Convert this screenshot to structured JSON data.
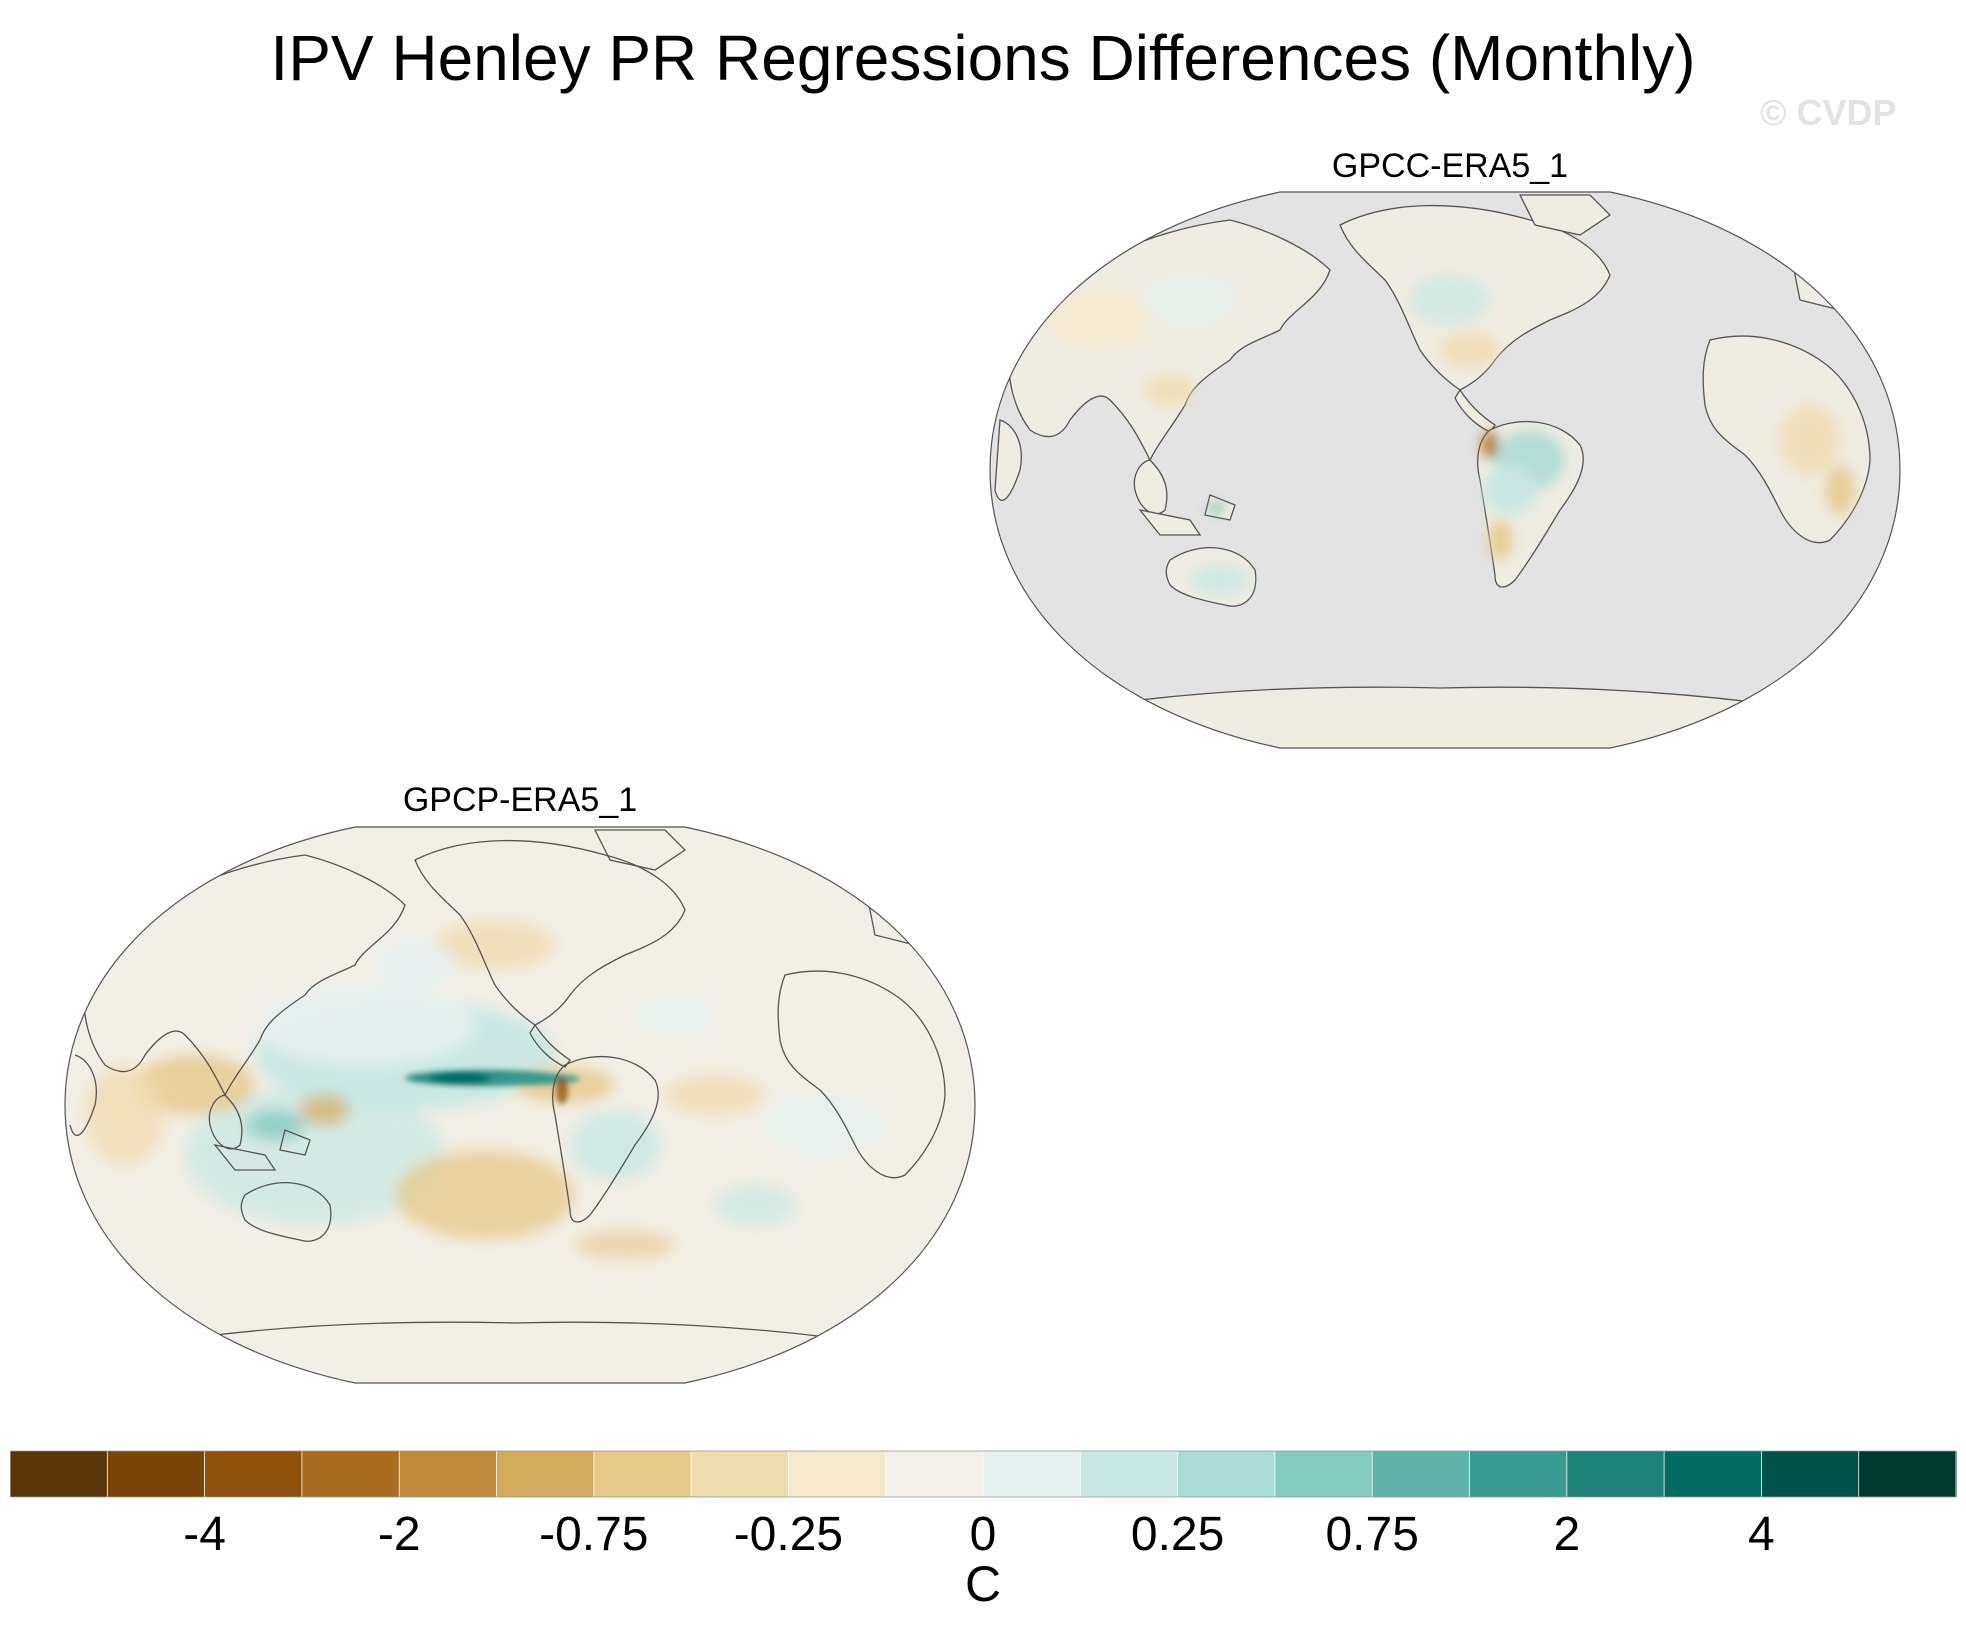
{
  "title": "IPV Henley PR Regressions Differences (Monthly)",
  "watermark": "© CVDP",
  "panels": [
    {
      "title": "GPCC-ERA5_1",
      "coverage": "land only",
      "ocean_color": "#e3e3e3",
      "background_color": "#efece2"
    },
    {
      "title": "GPCP-ERA5_1",
      "coverage": "global",
      "ocean_color": "#f2efe6",
      "background_color": "#f2efe6"
    }
  ],
  "colorbar": {
    "label": "C",
    "colors": [
      "#5a3508",
      "#7a4608",
      "#8f520c",
      "#a96b20",
      "#c08a3a",
      "#d3a95c",
      "#e5c98a",
      "#efdcae",
      "#f4e9cc",
      "#f4f1ea",
      "#e6f1ef",
      "#c8e7e3",
      "#a8dcd5",
      "#83cbbf",
      "#5fb3a7",
      "#3a9b90",
      "#1c8276",
      "#006c61",
      "#005246",
      "#003a2e"
    ],
    "ticks": [
      {
        "label": "-4",
        "boundary": 2
      },
      {
        "label": "-2",
        "boundary": 4
      },
      {
        "label": "-0.75",
        "boundary": 6
      },
      {
        "label": "-0.25",
        "boundary": 8
      },
      {
        "label": "0",
        "boundary": 10
      },
      {
        "label": "0.25",
        "boundary": 12
      },
      {
        "label": "0.75",
        "boundary": 14
      },
      {
        "label": "2",
        "boundary": 16
      },
      {
        "label": "4",
        "boundary": 18
      }
    ]
  }
}
